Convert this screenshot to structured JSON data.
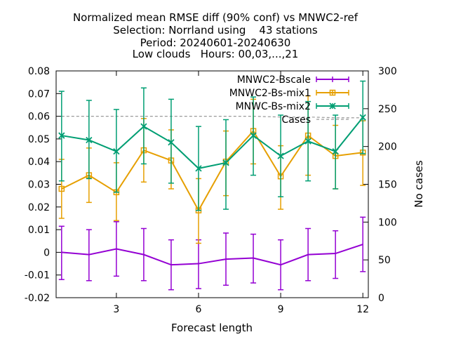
{
  "chart_data": {
    "type": "line",
    "title_lines": [
      "Normalized mean RMSE diff (90% conf) vs MNWC2-ref",
      "Selection: Norrland using    43 stations",
      "Period: 20240601-20240630",
      "Low clouds   Hours: 00,03,...,21"
    ],
    "xlabel": "Forecast length",
    "ylabel": "",
    "y2label": "No cases",
    "xlim": [
      0.8,
      12.2
    ],
    "ylim": [
      -0.02,
      0.08
    ],
    "y2lim": [
      0,
      300
    ],
    "xticks": [
      3,
      6,
      9,
      12
    ],
    "yticks": [
      -0.02,
      -0.01,
      0,
      0.01,
      0.02,
      0.03,
      0.04,
      0.05,
      0.06,
      0.07,
      0.08
    ],
    "ytick_labels": [
      "-0.02",
      "-0.01",
      "0",
      "0.01",
      "0.02",
      "0.03",
      "0.04",
      "0.05",
      "0.06",
      "0.07",
      "0.08"
    ],
    "y2ticks": [
      0,
      50,
      100,
      150,
      200,
      250,
      300
    ],
    "legend_position": "top-right",
    "x": [
      1,
      2,
      3,
      4,
      5,
      6,
      7,
      8,
      9,
      10,
      11,
      12
    ],
    "series": [
      {
        "name": "MNWC2-Bscale",
        "color": "#9400d3",
        "marker": "none",
        "values": [
          0.0,
          -0.001,
          0.0015,
          -0.001,
          -0.0055,
          -0.005,
          -0.003,
          -0.0025,
          -0.0055,
          -0.001,
          -0.0005,
          0.0035
        ],
        "err_low": [
          -0.012,
          -0.0125,
          -0.0105,
          -0.0125,
          -0.0165,
          -0.016,
          -0.0145,
          -0.0135,
          -0.0165,
          -0.0125,
          -0.0115,
          -0.0085
        ],
        "err_high": [
          0.0115,
          0.01,
          0.0135,
          0.0105,
          0.0055,
          0.0055,
          0.0085,
          0.008,
          0.0055,
          0.0105,
          0.0095,
          0.0155
        ]
      },
      {
        "name": "MNWC2-Bs-mix1",
        "color": "#e69f00",
        "marker": "square",
        "values": [
          0.028,
          0.034,
          0.0265,
          0.045,
          0.0405,
          0.0185,
          0.04,
          0.0535,
          0.0335,
          0.0515,
          0.0425,
          0.044
        ],
        "err_low": [
          0.015,
          0.022,
          0.014,
          0.031,
          0.028,
          0.004,
          0.025,
          0.039,
          0.019,
          0.034,
          0.028,
          0.0295
        ],
        "err_high": [
          0.041,
          0.046,
          0.0395,
          0.059,
          0.054,
          0.0325,
          0.0535,
          0.0675,
          0.047,
          0.069,
          0.056,
          0.058
        ]
      },
      {
        "name": "MNWC-Bs-mix2",
        "color": "#009e73",
        "marker": "x",
        "values": [
          0.0515,
          0.0495,
          0.0445,
          0.0555,
          0.0485,
          0.037,
          0.0395,
          0.0515,
          0.0425,
          0.049,
          0.0445,
          0.0595
        ],
        "err_low": [
          0.0315,
          0.0325,
          0.0265,
          0.039,
          0.0305,
          0.0185,
          0.019,
          0.034,
          0.0245,
          0.0315,
          0.028,
          0.0435
        ],
        "err_high": [
          0.071,
          0.067,
          0.063,
          0.0725,
          0.0675,
          0.0555,
          0.0585,
          0.0685,
          0.0605,
          0.0665,
          0.0605,
          0.0755
        ]
      }
    ],
    "cases_series": {
      "name": "Cases",
      "color": "#999999",
      "style": "dashed",
      "axis": "y2",
      "values": [
        240,
        240,
        240,
        240,
        240,
        240,
        240,
        240,
        239,
        239,
        238,
        238
      ]
    }
  }
}
